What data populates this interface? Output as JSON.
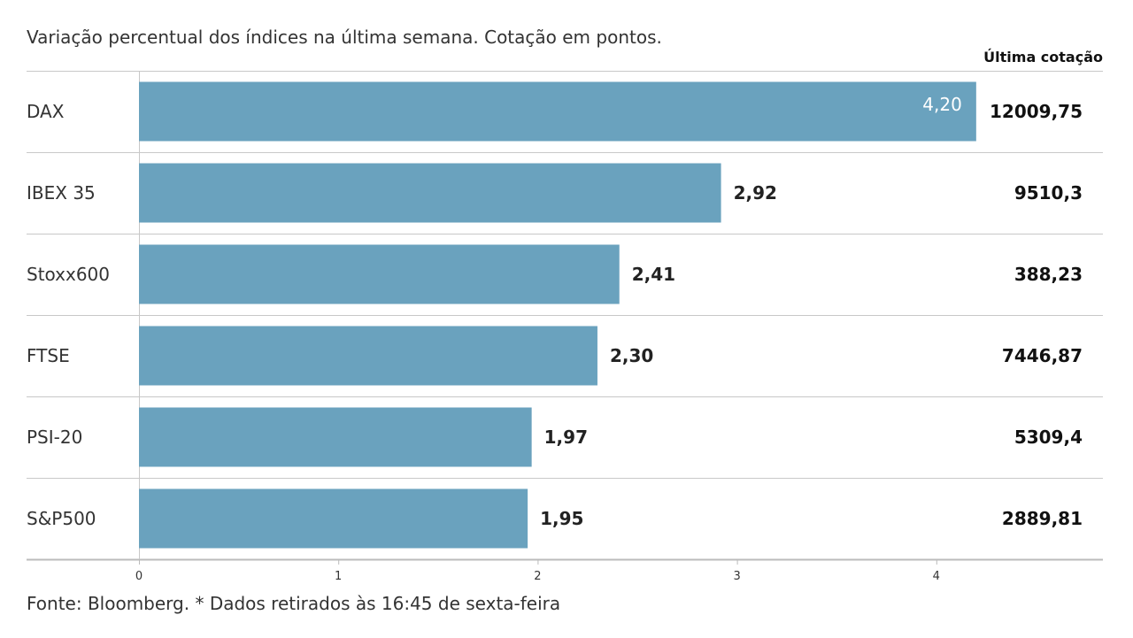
{
  "subtitle": "Variação percentual dos índices na última semana. Cotação em pontos.",
  "column_header": "Última cotação",
  "source": "Fonte: Bloomberg.  * Dados retirados às 16:45 de sexta-feira",
  "colors": {
    "bar": "#6aa2be",
    "grid": "#c8c8c8",
    "axis": "#bbbbbb"
  },
  "chart_data": {
    "type": "bar",
    "orientation": "horizontal",
    "title": "",
    "xlabel": "",
    "ylabel": "",
    "categories": [
      "DAX",
      "IBEX 35",
      "Stoxx600",
      "FTSE",
      "PSI-20",
      "S&P500"
    ],
    "values": [
      4.2,
      2.92,
      2.41,
      2.3,
      1.97,
      1.95
    ],
    "value_labels": [
      "4,20",
      "2,92",
      "2,41",
      "2,30",
      "1,97",
      "1,95"
    ],
    "last_quote": [
      "12009,75",
      "9510,3",
      "388,23",
      "7446,87",
      "5309,4",
      "2889,81"
    ],
    "xlim": [
      0,
      4.8
    ],
    "xticks": [
      0,
      1,
      2,
      3,
      4
    ],
    "xtick_labels": [
      "0",
      "1",
      "2",
      "3",
      "4"
    ],
    "grid": false
  }
}
